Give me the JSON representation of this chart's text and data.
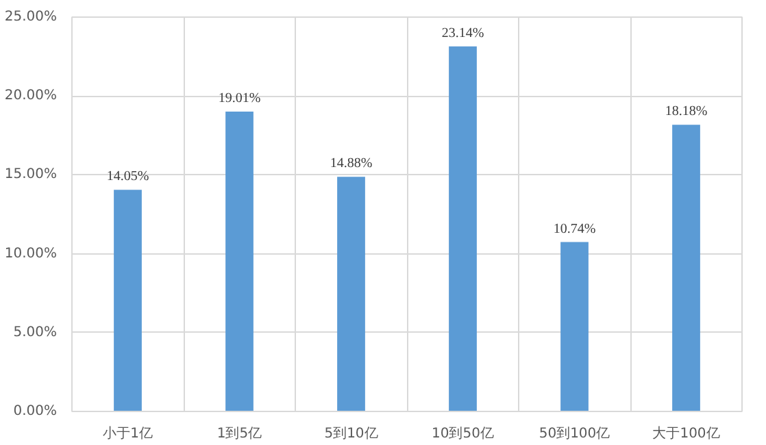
{
  "chart_data": {
    "type": "bar",
    "categories": [
      "小于1亿",
      "1到5亿",
      "5到10亿",
      "10到50亿",
      "50到100亿",
      "大于100亿"
    ],
    "values": [
      14.05,
      19.01,
      14.88,
      23.14,
      10.74,
      18.18
    ],
    "value_labels": [
      "14.05%",
      "19.01%",
      "14.88%",
      "23.14%",
      "10.74%",
      "18.18%"
    ],
    "color": "#5b9bd5",
    "ylim": [
      0,
      25
    ],
    "yticks": [
      {
        "value": 0,
        "label": "0.00%"
      },
      {
        "value": 5,
        "label": "5.00%"
      },
      {
        "value": 10,
        "label": "10.00%"
      },
      {
        "value": 15,
        "label": "15.00%"
      },
      {
        "value": 20,
        "label": "20.00%"
      },
      {
        "value": 25,
        "label": "25.00%"
      }
    ],
    "grid": true
  }
}
